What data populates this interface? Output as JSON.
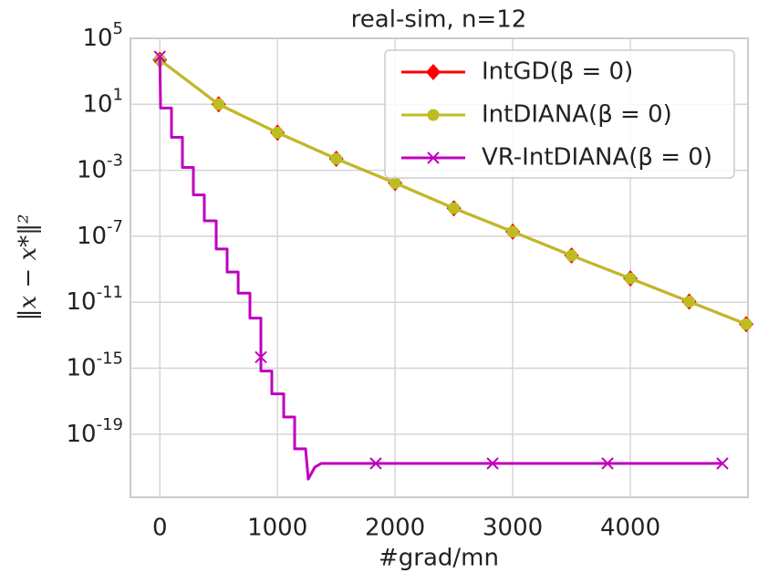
{
  "chart_data": {
    "type": "line",
    "title": "real-sim, n=12",
    "xlabel": "#grad/mn",
    "ylabel": "‖x − x*‖²",
    "yscale": "log",
    "grid": true,
    "legend": "upper right",
    "xlim": [
      -250,
      5000
    ],
    "xticks": [
      0,
      1000,
      2000,
      3000,
      4000
    ],
    "ylim": [
      1.5e-23,
      100000
    ],
    "yticks": [
      {
        "value": 100000,
        "label": "10^5"
      },
      {
        "value": 10,
        "label": "10^1"
      },
      {
        "value": 0.001,
        "label": "10^-3"
      },
      {
        "value": 1e-07,
        "label": "10^-7"
      },
      {
        "value": 1e-11,
        "label": "10^-11"
      },
      {
        "value": 1e-15,
        "label": "10^-15"
      },
      {
        "value": 1e-19,
        "label": "10^-19"
      }
    ],
    "series": [
      {
        "name": "IntGD(β = 0)",
        "color": "#ff0000",
        "marker": "D",
        "x": [
          0,
          500,
          1000,
          1500,
          2000,
          2500,
          3000,
          3500,
          4000,
          4500,
          4985
        ],
        "values": [
          5000,
          10,
          0.19,
          0.005,
          0.00017,
          5e-06,
          1.9e-07,
          6.8e-09,
          2.8e-10,
          1.1e-11,
          4.7e-13
        ]
      },
      {
        "name": "IntDIANA(β = 0)",
        "color": "#bcbd22",
        "marker": "o",
        "x": [
          0,
          500,
          1000,
          1500,
          2000,
          2500,
          3000,
          3500,
          4000,
          4500,
          4985
        ],
        "values": [
          5000,
          10,
          0.19,
          0.005,
          0.00017,
          5e-06,
          1.9e-07,
          6.8e-09,
          2.8e-10,
          1.1e-11,
          4.7e-13
        ]
      },
      {
        "name": "VR-IntDIANA(β = 0)",
        "color": "#bf00bf",
        "marker": "x",
        "markevery": [
          0,
          19,
          31,
          32,
          33,
          34
        ],
        "x": [
          0,
          6,
          99,
          99,
          192,
          192,
          285,
          285,
          378,
          378,
          479,
          479,
          572,
          572,
          666,
          666,
          766,
          766,
          859,
          859,
          859,
          952,
          952,
          1053,
          1053,
          1146,
          1146,
          1239,
          1262,
          1317,
          1371,
          1836,
          2829,
          3806,
          4783
        ],
        "values": [
          7800,
          6,
          6,
          0.1,
          0.1,
          0.0015,
          0.0015,
          3.2e-05,
          3.2e-05,
          8.7e-07,
          8.7e-07,
          1.7e-08,
          1.7e-08,
          6.8e-10,
          6.8e-10,
          3.6e-11,
          3.6e-11,
          1.1e-12,
          1.1e-12,
          4.7e-15,
          6.8e-16,
          6.8e-16,
          2.8e-17,
          2.8e-17,
          1.1e-18,
          1.1e-18,
          1.3e-20,
          1.3e-20,
          1.9e-22,
          1e-21,
          1.7e-21,
          1.7e-21,
          1.7e-21,
          1.7e-21,
          1.7e-21
        ]
      }
    ]
  }
}
